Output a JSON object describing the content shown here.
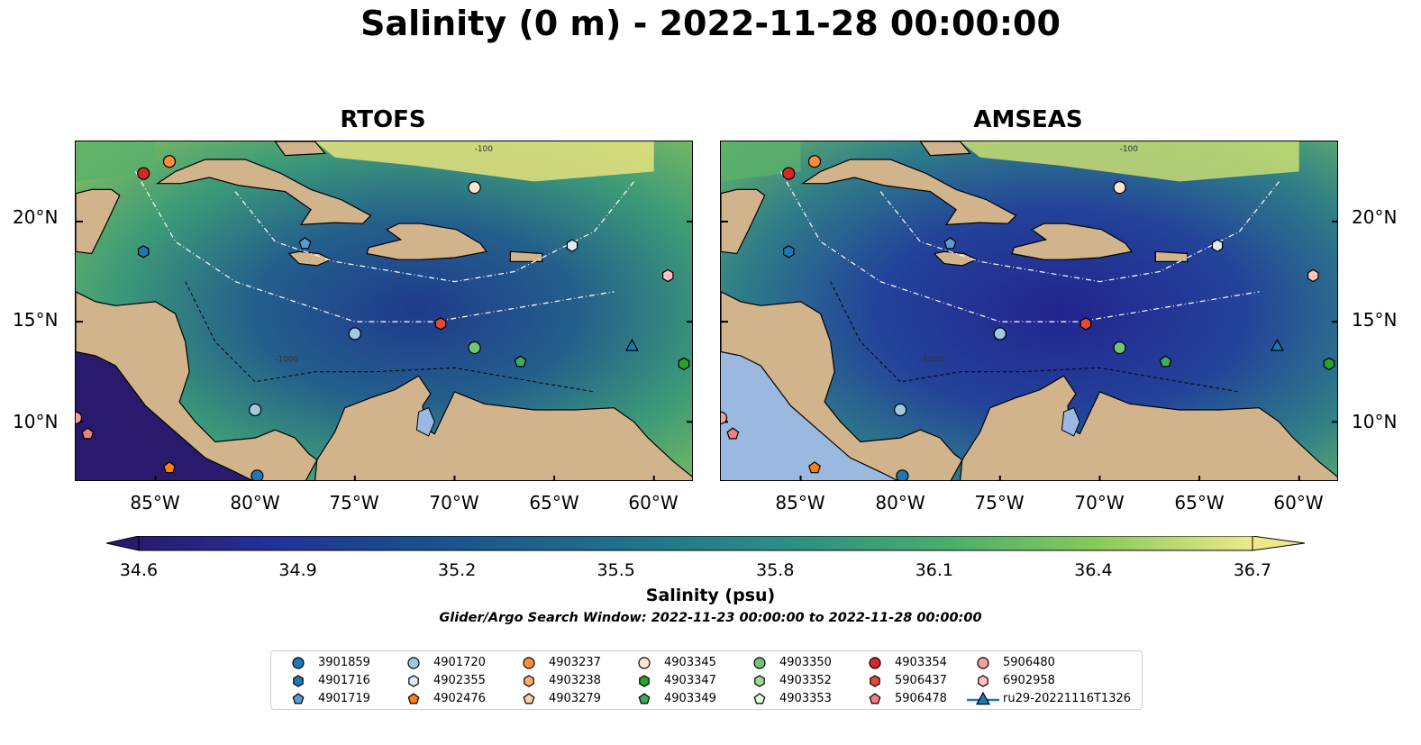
{
  "title": "Salinity (0 m) - 2022-11-28 00:00:00",
  "panels": [
    {
      "title": "RTOFS"
    },
    {
      "title": "AMSEAS"
    }
  ],
  "map_extent": {
    "lon_min": -89,
    "lon_max": -58,
    "lat_min": 7,
    "lat_max": 24
  },
  "lat_labels": [
    "20°N",
    "15°N",
    "10°N"
  ],
  "lon_labels": [
    "85°W",
    "80°W",
    "75°W",
    "70°W",
    "65°W",
    "60°W"
  ],
  "colorbar": {
    "label": "Salinity (psu)",
    "min": 34.6,
    "max": 36.7,
    "ticks": [
      "34.6",
      "34.9",
      "35.2",
      "35.5",
      "35.8",
      "36.1",
      "36.4",
      "36.7"
    ],
    "colormap": "haline",
    "extend": "both"
  },
  "search_window": "Glider/Argo Search Window: 2022-11-23 00:00:00 to 2022-11-28 00:00:00",
  "contour_labels": [
    "-100",
    "-1000"
  ],
  "colors": {
    "land": "#d2b48c",
    "rivers": "#9ab8d8"
  },
  "legend": [
    {
      "label": "3901859",
      "marker": "circle",
      "color": "#1f77b4"
    },
    {
      "label": "4901716",
      "marker": "hexagon",
      "color": "#1f77b4"
    },
    {
      "label": "4901719",
      "marker": "pentagon",
      "color": "#5b9bd5"
    },
    {
      "label": "4901720",
      "marker": "circle",
      "color": "#9ecae1"
    },
    {
      "label": "4902355",
      "marker": "hexagon",
      "color": "#deebf7"
    },
    {
      "label": "4902476",
      "marker": "pentagon",
      "color": "#ff7f0e"
    },
    {
      "label": "4903237",
      "marker": "circle",
      "color": "#fd8d3c"
    },
    {
      "label": "4903238",
      "marker": "hexagon",
      "color": "#fdae6b"
    },
    {
      "label": "4903279",
      "marker": "pentagon",
      "color": "#fdd0a2"
    },
    {
      "label": "4903345",
      "marker": "circle",
      "color": "#fee6ce"
    },
    {
      "label": "4903347",
      "marker": "hexagon",
      "color": "#2ca02c"
    },
    {
      "label": "4903349",
      "marker": "pentagon",
      "color": "#41ab5d"
    },
    {
      "label": "4903350",
      "marker": "circle",
      "color": "#74c476"
    },
    {
      "label": "4903352",
      "marker": "hexagon",
      "color": "#a1d99b"
    },
    {
      "label": "4903353",
      "marker": "pentagon",
      "color": "#e5f5e0"
    },
    {
      "label": "4903354",
      "marker": "circle",
      "color": "#d62728"
    },
    {
      "label": "5906437",
      "marker": "hexagon",
      "color": "#e34a33"
    },
    {
      "label": "5906478",
      "marker": "pentagon",
      "color": "#f08080"
    },
    {
      "label": "5906480",
      "marker": "circle",
      "color": "#f4a09c"
    },
    {
      "label": "6902958",
      "marker": "hexagon",
      "color": "#fcc5c0"
    },
    {
      "label": "ru29-20221116T1326",
      "marker": "triangle-line",
      "color": "#1f77b4"
    }
  ],
  "markers": [
    {
      "id": "3901859",
      "lon": -79.9,
      "lat": 7.3
    },
    {
      "id": "4901716",
      "lon": -85.6,
      "lat": 18.5
    },
    {
      "id": "4901719",
      "lon": -77.5,
      "lat": 18.9
    },
    {
      "id": "4901720",
      "lon": -75.0,
      "lat": 14.4
    },
    {
      "id": "4901720",
      "lon": -80.0,
      "lat": 10.6
    },
    {
      "id": "4902355",
      "lon": -64.1,
      "lat": 18.8
    },
    {
      "id": "4902476",
      "lon": -84.3,
      "lat": 7.7
    },
    {
      "id": "4903237",
      "lon": -84.3,
      "lat": 23.0
    },
    {
      "id": "4903345",
      "lon": -69.0,
      "lat": 21.7
    },
    {
      "id": "4903347",
      "lon": -58.5,
      "lat": 12.9
    },
    {
      "id": "4903349",
      "lon": -66.7,
      "lat": 13.0
    },
    {
      "id": "4903350",
      "lon": -69.0,
      "lat": 13.7
    },
    {
      "id": "4903354",
      "lon": -85.6,
      "lat": 22.4
    },
    {
      "id": "5906437",
      "lon": -70.7,
      "lat": 14.9
    },
    {
      "id": "5906478",
      "lon": -88.4,
      "lat": 9.4
    },
    {
      "id": "5906480",
      "lon": -89.0,
      "lat": 10.2
    },
    {
      "id": "6902958",
      "lon": -59.3,
      "lat": 17.3
    },
    {
      "id": "ru29-20221116T1326",
      "lon": -61.1,
      "lat": 13.8
    }
  ]
}
